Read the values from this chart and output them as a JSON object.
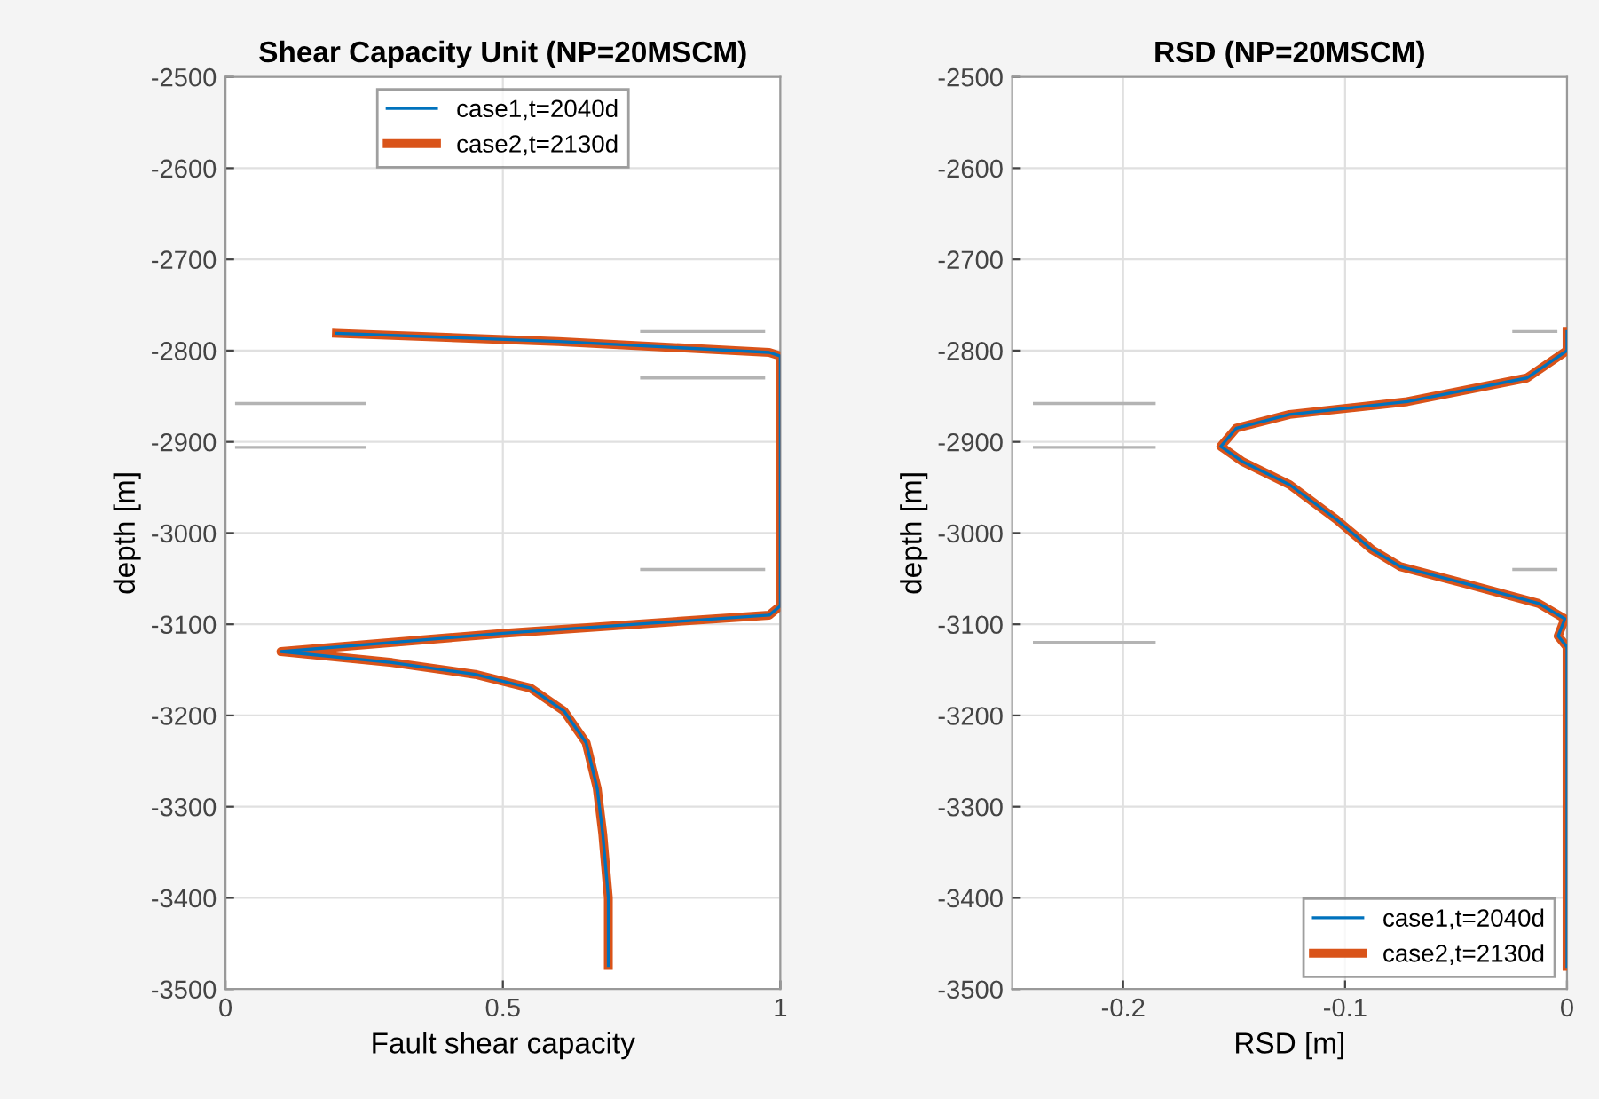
{
  "chart_data": [
    {
      "type": "line",
      "title": "Shear Capacity Unit (NP=20MSCM)",
      "xlabel": "Fault shear capacity",
      "ylabel": "depth [m]",
      "xlim": [
        0,
        1
      ],
      "xticks": [
        0,
        0.5,
        1
      ],
      "ylim": [
        -3500,
        -2500
      ],
      "yticks": [
        -3500,
        -3400,
        -3300,
        -3200,
        -3100,
        -3000,
        -2900,
        -2800,
        -2700,
        -2600,
        -2500
      ],
      "grid": true,
      "legend": "top",
      "series": [
        {
          "color": "#b4b4b4",
          "x": [
            0.75,
            0.97
          ],
          "values": [
            -2779,
            -2779
          ]
        },
        {
          "color": "#b4b4b4",
          "x": [
            0.75,
            0.97
          ],
          "values": [
            -2830,
            -2830
          ]
        },
        {
          "color": "#b4b4b4",
          "x": [
            0.02,
            0.25
          ],
          "values": [
            -2858,
            -2858
          ]
        },
        {
          "color": "#b4b4b4",
          "x": [
            0.02,
            0.25
          ],
          "values": [
            -2906,
            -2906
          ]
        },
        {
          "color": "#b4b4b4",
          "x": [
            0.75,
            0.97
          ],
          "values": [
            -3040,
            -3040
          ]
        },
        {
          "name": "case1,t=2040d",
          "color": "#0072bd",
          "x": [
            0.2,
            0.6,
            0.98,
            1,
            1,
            1,
            0.98,
            0.5,
            0.1,
            0.3,
            0.45,
            0.55,
            0.61,
            0.65,
            0.67,
            0.68,
            0.69,
            0.69
          ],
          "values": [
            -2781,
            -2790,
            -2802,
            -2806,
            -3000,
            -3080,
            -3090,
            -3110,
            -3130,
            -3142,
            -3155,
            -3170,
            -3195,
            -3230,
            -3280,
            -3330,
            -3400,
            -3474
          ]
        },
        {
          "name": "case2,t=2130d",
          "color": "#d95319",
          "x": [
            0.2,
            0.6,
            0.98,
            1,
            1,
            1,
            0.98,
            0.5,
            0.1,
            0.3,
            0.45,
            0.55,
            0.61,
            0.65,
            0.67,
            0.68,
            0.69,
            0.69
          ],
          "values": [
            -2781,
            -2790,
            -2802,
            -2806,
            -3000,
            -3080,
            -3090,
            -3110,
            -3130,
            -3142,
            -3155,
            -3170,
            -3195,
            -3230,
            -3280,
            -3330,
            -3400,
            -3474
          ]
        }
      ]
    },
    {
      "type": "line",
      "title": "RSD (NP=20MSCM)",
      "xlabel": "RSD [m]",
      "ylabel": "depth [m]",
      "xlim": [
        -0.25,
        0
      ],
      "xticks": [
        -0.2,
        -0.1,
        0
      ],
      "ylim": [
        -3500,
        -2500
      ],
      "yticks": [
        -3500,
        -3400,
        -3300,
        -3200,
        -3100,
        -3000,
        -2900,
        -2800,
        -2700,
        -2600,
        -2500
      ],
      "grid": true,
      "legend": "bottom right",
      "series": [
        {
          "color": "#b4b4b4",
          "x": [
            -0.024,
            -0.005
          ],
          "values": [
            -2779,
            -2779
          ]
        },
        {
          "color": "#b4b4b4",
          "x": [
            -0.24,
            -0.186
          ],
          "values": [
            -2858,
            -2858
          ]
        },
        {
          "color": "#b4b4b4",
          "x": [
            -0.24,
            -0.186
          ],
          "values": [
            -2906,
            -2906
          ]
        },
        {
          "color": "#b4b4b4",
          "x": [
            -0.024,
            -0.005
          ],
          "values": [
            -3040,
            -3040
          ]
        },
        {
          "color": "#b4b4b4",
          "x": [
            -0.24,
            -0.186
          ],
          "values": [
            -3120,
            -3120
          ]
        },
        {
          "name": "case1,t=2040d",
          "color": "#0072bd",
          "x": [
            0,
            0,
            -0.018,
            -0.072,
            -0.125,
            -0.149,
            -0.156,
            -0.146,
            -0.125,
            -0.104,
            -0.088,
            -0.075,
            -0.045,
            -0.013,
            -0.001,
            -0.004,
            0,
            0
          ],
          "values": [
            -2779,
            -2800,
            -2830,
            -2856,
            -2870,
            -2885,
            -2905,
            -2922,
            -2947,
            -2985,
            -3018,
            -3037,
            -3056,
            -3077,
            -3094,
            -3113,
            -3125,
            -3475
          ]
        },
        {
          "name": "case2,t=2130d",
          "color": "#d95319",
          "x": [
            0,
            0,
            -0.018,
            -0.072,
            -0.125,
            -0.149,
            -0.156,
            -0.146,
            -0.125,
            -0.104,
            -0.088,
            -0.075,
            -0.045,
            -0.013,
            -0.001,
            -0.004,
            0,
            0
          ],
          "values": [
            -2779,
            -2800,
            -2830,
            -2856,
            -2870,
            -2885,
            -2905,
            -2922,
            -2947,
            -2985,
            -3018,
            -3037,
            -3056,
            -3077,
            -3094,
            -3113,
            -3125,
            -3475
          ]
        }
      ]
    }
  ]
}
